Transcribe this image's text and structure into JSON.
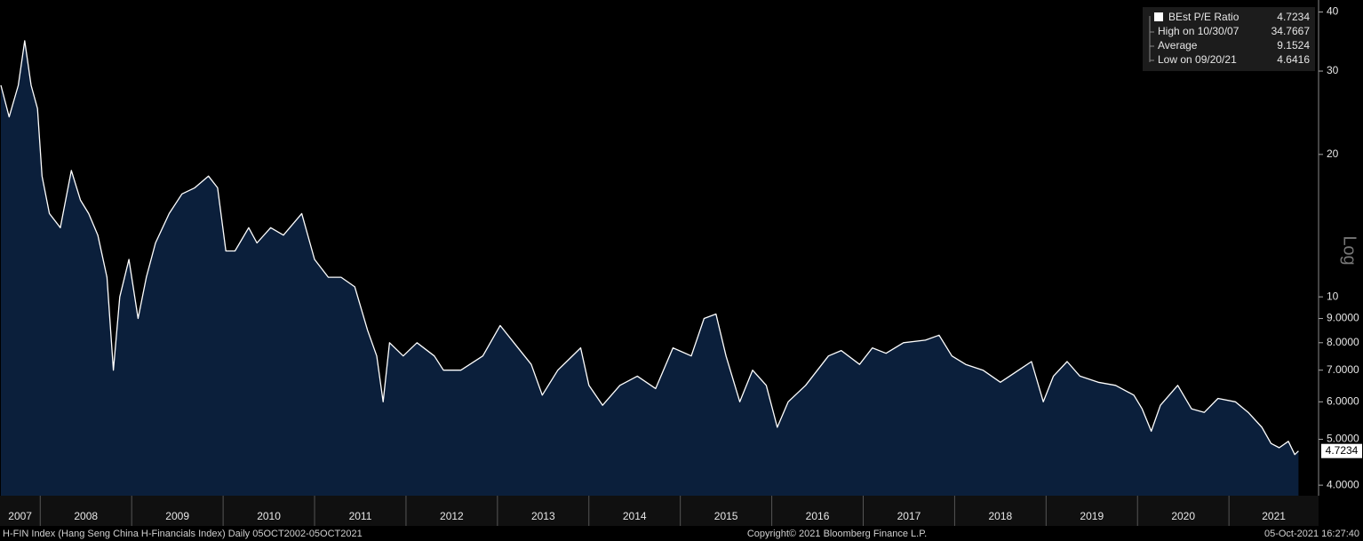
{
  "chart_data": {
    "type": "line",
    "log_scale": true,
    "grid": false,
    "x": [
      2007.57,
      2007.66,
      2007.76,
      2007.83,
      2007.9,
      2007.97,
      2008.02,
      2008.1,
      2008.22,
      2008.34,
      2008.44,
      2008.53,
      2008.63,
      2008.73,
      2008.8,
      2008.87,
      2008.97,
      2009.07,
      2009.16,
      2009.26,
      2009.41,
      2009.55,
      2009.69,
      2009.84,
      2009.94,
      2010.03,
      2010.13,
      2010.28,
      2010.37,
      2010.52,
      2010.66,
      2010.86,
      2011.0,
      2011.15,
      2011.29,
      2011.44,
      2011.58,
      2011.68,
      2011.75,
      2011.82,
      2011.97,
      2012.12,
      2012.31,
      2012.41,
      2012.6,
      2012.84,
      2013.03,
      2013.18,
      2013.37,
      2013.49,
      2013.66,
      2013.91,
      2014.0,
      2014.15,
      2014.34,
      2014.53,
      2014.73,
      2014.92,
      2015.12,
      2015.26,
      2015.39,
      2015.5,
      2015.65,
      2015.79,
      2015.94,
      2016.06,
      2016.18,
      2016.37,
      2016.62,
      2016.76,
      2016.96,
      2017.1,
      2017.25,
      2017.44,
      2017.68,
      2017.83,
      2017.97,
      2018.12,
      2018.31,
      2018.5,
      2018.7,
      2018.84,
      2018.97,
      2019.08,
      2019.23,
      2019.37,
      2019.57,
      2019.76,
      2019.96,
      2020.05,
      2020.15,
      2020.25,
      2020.44,
      2020.59,
      2020.73,
      2020.88,
      2021.07,
      2021.21,
      2021.36,
      2021.46,
      2021.55,
      2021.65,
      2021.72,
      2021.76
    ],
    "series": [
      {
        "name": "BEst P/E Ratio",
        "color": "#ffffff",
        "fill": "#0b1f3b",
        "values": [
          28,
          24,
          28,
          34.77,
          28,
          25,
          18,
          15,
          14,
          18.5,
          16,
          15,
          13.5,
          11,
          7,
          10,
          12,
          9,
          11,
          13,
          15,
          16.5,
          17,
          18,
          17,
          12.5,
          12.5,
          14,
          13,
          14,
          13.5,
          15,
          12,
          11,
          11,
          10.5,
          8.5,
          7.5,
          6,
          8,
          7.5,
          8,
          7.5,
          7,
          7,
          7.5,
          8.7,
          8,
          7.2,
          6.2,
          7,
          7.8,
          6.5,
          5.9,
          6.5,
          6.8,
          6.4,
          7.8,
          7.5,
          9,
          9.2,
          7.5,
          6,
          7,
          6.5,
          5.3,
          6,
          6.5,
          7.5,
          7.7,
          7.2,
          7.8,
          7.6,
          8,
          8.1,
          8.3,
          7.5,
          7.2,
          7.0,
          6.6,
          7.0,
          7.3,
          6.0,
          6.8,
          7.3,
          6.8,
          6.6,
          6.5,
          6.2,
          5.8,
          5.2,
          5.9,
          6.5,
          5.8,
          5.7,
          6.1,
          6.0,
          5.7,
          5.3,
          4.9,
          4.8,
          4.95,
          4.6416,
          4.7234
        ]
      }
    ],
    "last_value": 4.7234,
    "xlim": [
      2007.56,
      2021.98
    ],
    "xticks": [
      2008,
      2009,
      2010,
      2011,
      2012,
      2013,
      2014,
      2015,
      2016,
      2017,
      2018,
      2019,
      2020,
      2021
    ],
    "year_labels": [
      "2007",
      "2008",
      "2009",
      "2010",
      "2011",
      "2012",
      "2013",
      "2014",
      "2015",
      "2016",
      "2017",
      "2018",
      "2019",
      "2020",
      "2021"
    ],
    "ylim": [
      3.8,
      42.4
    ],
    "yticks": [
      {
        "value": 4,
        "label": "4.0000"
      },
      {
        "value": 5,
        "label": "5.0000"
      },
      {
        "value": 6,
        "label": "6.0000"
      },
      {
        "value": 7,
        "label": "7.0000"
      },
      {
        "value": 8,
        "label": "8.0000"
      },
      {
        "value": 9,
        "label": "9.0000"
      },
      10,
      20,
      30,
      40
    ],
    "y_axis_label": "Log",
    "legend": {
      "corner": "top-right",
      "stats": [
        {
          "label": "High on 10/30/07",
          "value": 34.7667
        },
        {
          "label": "Average",
          "value": 9.1524
        },
        {
          "label": "Low on 09/20/21",
          "value": 4.6416
        }
      ]
    }
  },
  "footer": {
    "left": "H-FIN Index (Hang Seng China H-Financials Index)  Daily 05OCT2002-05OCT2021",
    "center": "Copyright© 2021 Bloomberg Finance L.P.",
    "right": "05-Oct-2021 16:27:40"
  }
}
